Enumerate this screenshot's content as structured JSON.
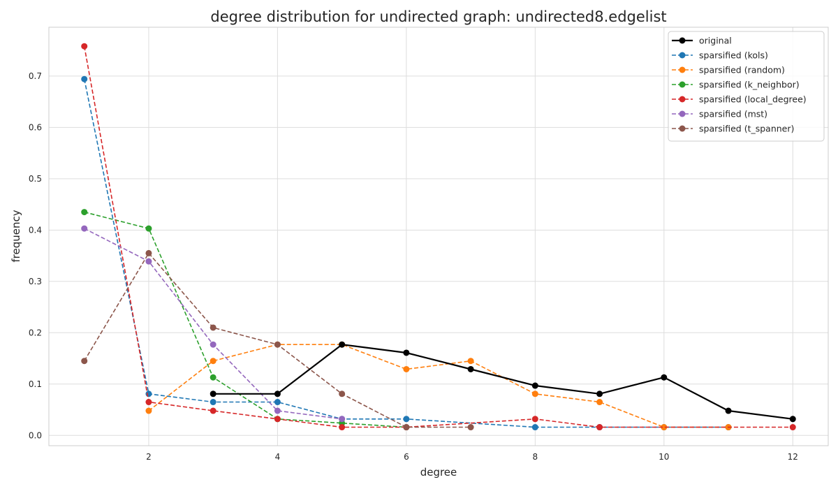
{
  "chart_data": {
    "type": "line",
    "title": "degree distribution for undirected graph: undirected8.edgelist",
    "xlabel": "degree",
    "ylabel": "frequency",
    "xlim": [
      0.45,
      12.55
    ],
    "ylim": [
      -0.02,
      0.795
    ],
    "xticks": [
      2,
      4,
      6,
      8,
      10,
      12
    ],
    "yticks": [
      0.0,
      0.1,
      0.2,
      0.3,
      0.4,
      0.5,
      0.6,
      0.7
    ],
    "ytick_labels": [
      "0.0",
      "0.1",
      "0.2",
      "0.3",
      "0.4",
      "0.5",
      "0.6",
      "0.7"
    ],
    "grid": true,
    "legend_position": "top-right",
    "series": [
      {
        "name": "original",
        "color": "#000000",
        "style": "solid",
        "x": [
          3,
          4,
          5,
          6,
          7,
          8,
          9,
          10,
          11,
          12
        ],
        "y": [
          0.081,
          0.081,
          0.177,
          0.161,
          0.129,
          0.097,
          0.081,
          0.113,
          0.048,
          0.032
        ]
      },
      {
        "name": "sparsified (kols)",
        "color": "#1f77b4",
        "style": "dashed",
        "x": [
          1,
          2,
          3,
          4,
          5,
          6,
          8,
          9,
          10,
          11
        ],
        "y": [
          0.694,
          0.081,
          0.065,
          0.065,
          0.032,
          0.032,
          0.016,
          0.016,
          0.016,
          0.016
        ]
      },
      {
        "name": "sparsified (random)",
        "color": "#ff7f0e",
        "style": "dashed",
        "x": [
          2,
          3,
          4,
          5,
          6,
          7,
          8,
          9,
          10,
          11
        ],
        "y": [
          0.048,
          0.145,
          0.177,
          0.177,
          0.129,
          0.145,
          0.081,
          0.065,
          0.016,
          0.016
        ]
      },
      {
        "name": "sparsified (k_neighbor)",
        "color": "#2ca02c",
        "style": "dashed",
        "x": [
          1,
          2,
          3,
          4,
          5,
          6
        ],
        "y": [
          0.435,
          0.403,
          0.113,
          0.032,
          0.024,
          0.016
        ]
      },
      {
        "name": "sparsified (local_degree)",
        "color": "#d62728",
        "style": "dashed",
        "x": [
          1,
          2,
          3,
          4,
          5,
          6,
          8,
          9,
          12
        ],
        "y": [
          0.758,
          0.065,
          0.048,
          0.032,
          0.016,
          0.016,
          0.032,
          0.016,
          0.016
        ]
      },
      {
        "name": "sparsified (mst)",
        "color": "#9467bd",
        "style": "dashed",
        "x": [
          1,
          2,
          3,
          4,
          5
        ],
        "y": [
          0.403,
          0.339,
          0.177,
          0.048,
          0.032
        ]
      },
      {
        "name": "sparsified (t_spanner)",
        "color": "#8c564b",
        "style": "dashed",
        "x": [
          1,
          2,
          3,
          4,
          5,
          6,
          7
        ],
        "y": [
          0.145,
          0.355,
          0.21,
          0.177,
          0.081,
          0.016,
          0.016
        ]
      }
    ]
  }
}
